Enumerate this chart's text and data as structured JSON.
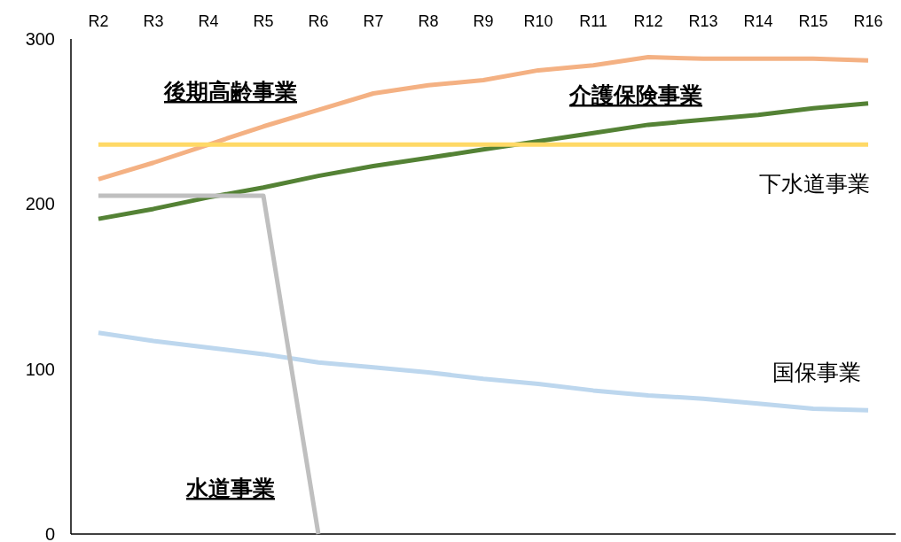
{
  "chart_data": {
    "type": "line",
    "categories": [
      "R2",
      "R3",
      "R4",
      "R5",
      "R6",
      "R7",
      "R8",
      "R9",
      "R10",
      "R11",
      "R12",
      "R13",
      "R14",
      "R15",
      "R16"
    ],
    "ylim": [
      0,
      300
    ],
    "yticks": [
      0,
      100,
      200,
      300
    ],
    "grid": false,
    "marker": "none",
    "line_style": "solid",
    "series": [
      {
        "name": "後期高齢事業",
        "color": "#f4b183",
        "values": [
          215,
          225,
          236,
          247,
          257,
          267,
          272,
          275,
          281,
          284,
          289,
          288,
          288,
          288,
          287
        ]
      },
      {
        "name": "介護保険事業",
        "color": "#548235",
        "values": [
          191,
          197,
          204,
          210,
          217,
          223,
          228,
          233,
          238,
          243,
          248,
          251,
          254,
          258,
          261
        ]
      },
      {
        "name": "下水道事業",
        "color": "#ffd966",
        "values": [
          236,
          236,
          236,
          236,
          236,
          236,
          236,
          236,
          236,
          236,
          236,
          236,
          236,
          236,
          236
        ]
      },
      {
        "name": "国保事業",
        "color": "#bdd7ee",
        "values": [
          122,
          117,
          113,
          109,
          104,
          101,
          98,
          94,
          91,
          87,
          84,
          82,
          79,
          76,
          75
        ]
      },
      {
        "name": "水道事業",
        "color": "#bfbfbf",
        "values": [
          205,
          205,
          205,
          205,
          0,
          null,
          null,
          null,
          null,
          null,
          null,
          null,
          null,
          null,
          null
        ]
      }
    ]
  }
}
